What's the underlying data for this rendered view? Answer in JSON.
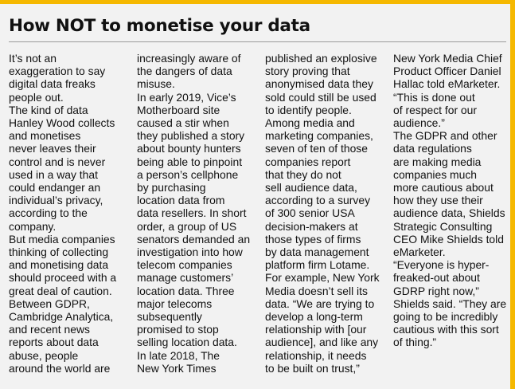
{
  "headline": "How NOT to monetise your data",
  "columns": [
    {
      "lines": [
        "It’s not an",
        "exaggeration to say",
        "digital data freaks",
        "people out.",
        "The kind of data",
        "Hanley Wood collects",
        "and monetises",
        "never leaves their",
        "control and is never",
        "used in a way that",
        "could endanger an",
        "individual’s privacy,",
        "according to the",
        "company.",
        "But media companies",
        "thinking of collecting",
        "and monetising data",
        "should proceed with a",
        "great deal of caution.",
        "Between GDPR,",
        "Cambridge Analytica,",
        "and recent news",
        "reports about data",
        "abuse, people",
        "around the world are"
      ]
    },
    {
      "lines": [
        "increasingly aware of",
        "the dangers of data",
        "misuse.",
        "In early 2019, Vice’s",
        "Motherboard site",
        "caused a stir when",
        "they published a story",
        "about bounty hunters",
        "being able to pinpoint",
        "a person’s cellphone",
        "by purchasing",
        "location data from",
        "data resellers. In short",
        "order, a group of US",
        "senators demanded an",
        "investigation into how",
        "telecom companies",
        "manage customers’",
        "location data. Three",
        "major telecoms",
        "subsequently",
        "promised to stop",
        "selling location data.",
        "In late 2018, The",
        "New York Times"
      ]
    },
    {
      "lines": [
        "published an explosive",
        "story proving that",
        "anonymised data they",
        "sold could still be used",
        "to identify people.",
        "Among media and",
        "marketing companies,",
        "seven of ten of those",
        "companies report",
        "that they do not",
        "sell audience data,",
        "according to a survey",
        "of 300 senior USA",
        "decision-makers at",
        "those types of firms",
        "by data management",
        "platform firm Lotame.",
        "For example, New York",
        "Media doesn’t sell its",
        "data. “We are trying to",
        "develop a long-term",
        "relationship with [our",
        "audience], and like any",
        "relationship, it needs",
        "to be built on trust,”"
      ]
    },
    {
      "lines": [
        "New York Media Chief",
        "Product Officer Daniel",
        "Hallac told eMarketer.",
        "“This is done out",
        "of respect for our",
        "audience.”",
        "The GDPR and other",
        "data regulations",
        "are making media",
        "companies much",
        "more cautious about",
        "how they use their",
        "audience data, Shields",
        "Strategic Consulting",
        "CEO Mike Shields told",
        "eMarketer.",
        "“Everyone is hyper-",
        "freaked-out about",
        "GDRP right now,”",
        "Shields said. “They are",
        "going to be incredibly",
        "cautious with this sort",
        "of thing.”"
      ]
    }
  ]
}
